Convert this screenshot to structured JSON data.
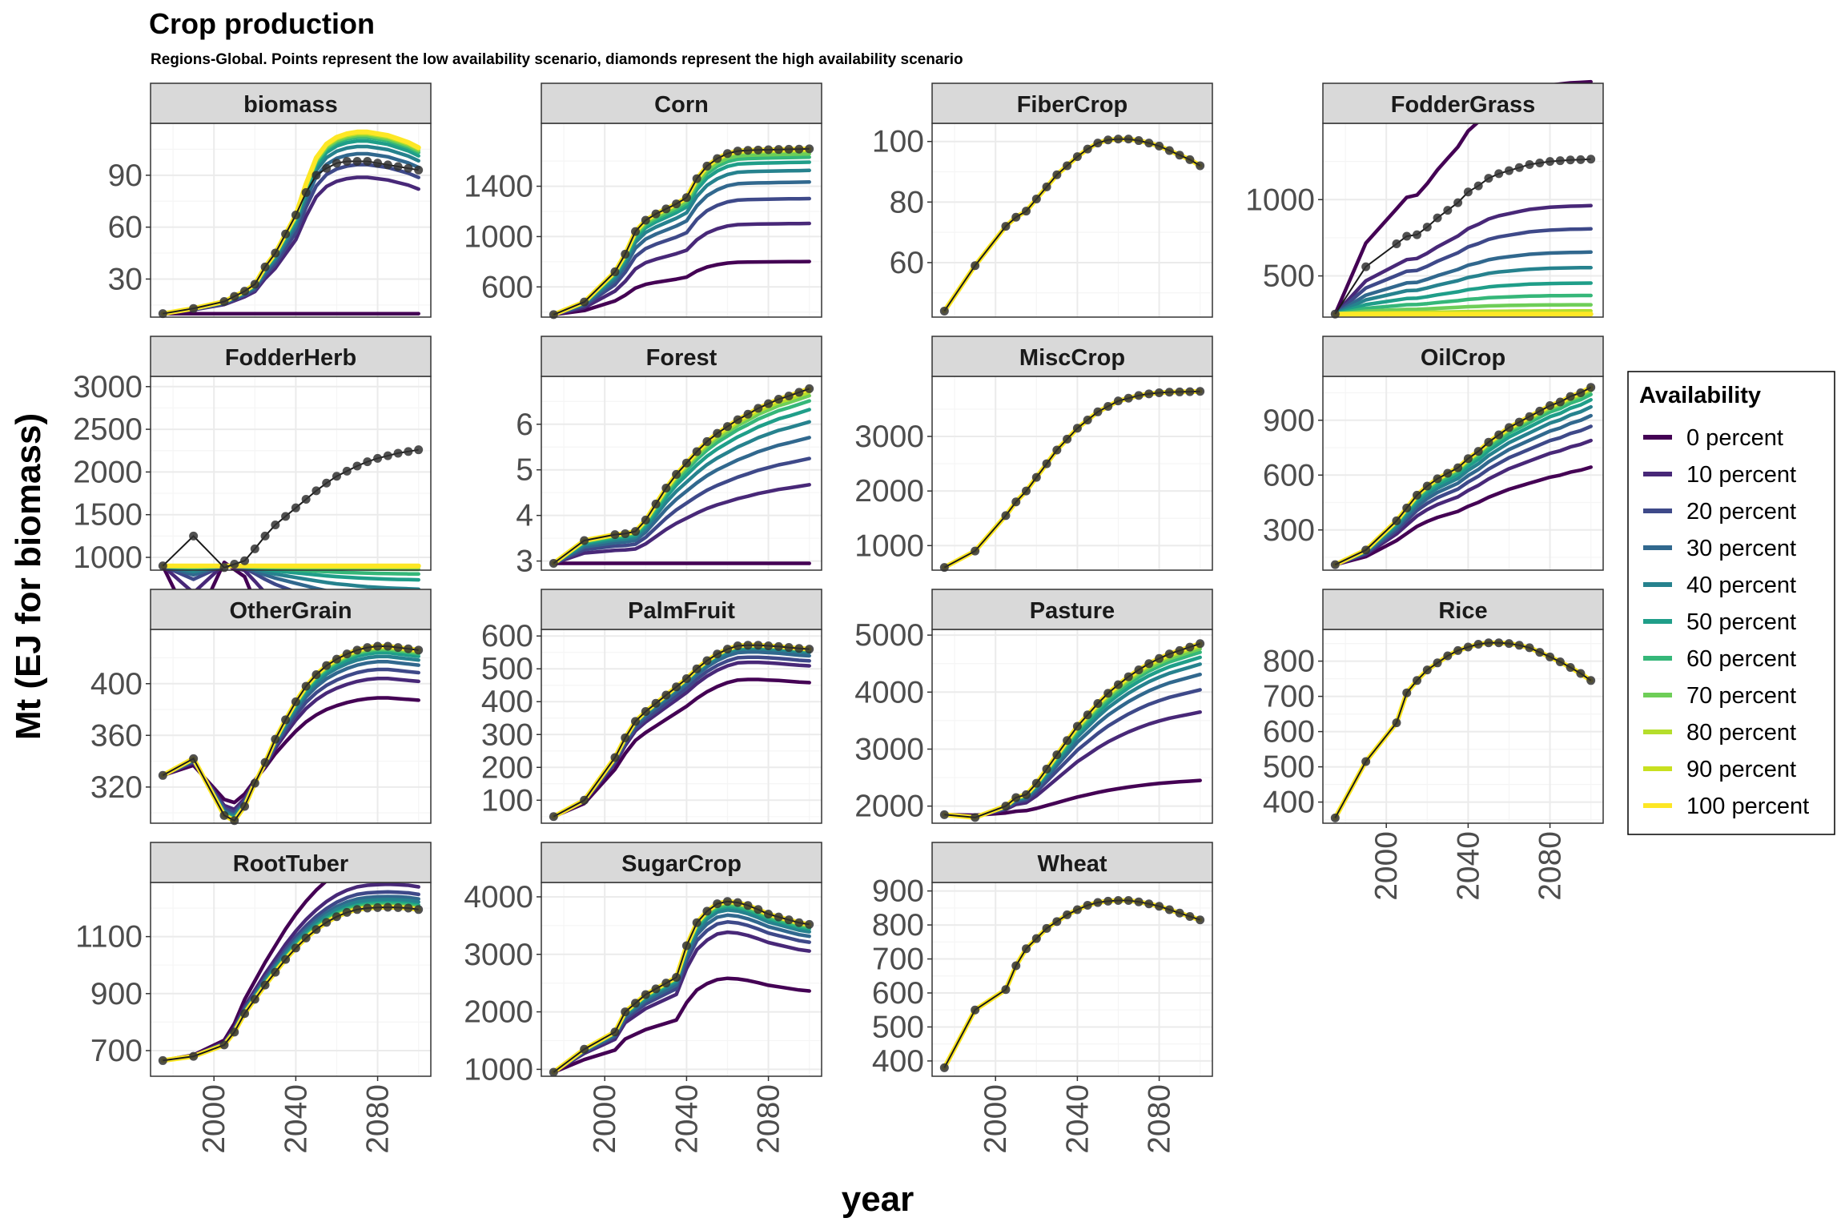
{
  "figure": {
    "title": "Crop production",
    "subtitle": "Regions-Global. Points represent the low availability scenario, diamonds represent the high availability scenario",
    "xlabel": "year",
    "ylabel": "Mt (EJ for biomass)"
  },
  "colors": {
    "strip_fill": "#d9d9d9",
    "panel_border": "#333333",
    "grid_major": "#ebebeb",
    "grid_minor": "#f5f5f5",
    "points": "#333333",
    "palette": [
      "#440154",
      "#482878",
      "#3e4989",
      "#31688e",
      "#26828e",
      "#1f9e89",
      "#35b779",
      "#6ece58",
      "#b5de2b",
      "#c8e020",
      "#fde725"
    ]
  },
  "chart_data": {
    "type": "line",
    "x": [
      1975,
      1990,
      2005,
      2010,
      2015,
      2020,
      2025,
      2030,
      2035,
      2040,
      2045,
      2050,
      2055,
      2060,
      2065,
      2070,
      2075,
      2080,
      2085,
      2090,
      2095,
      2100
    ],
    "xticks": [
      "2000",
      "2040",
      "2080"
    ],
    "xtick_values": [
      2000,
      2040,
      2080
    ],
    "xlim": [
      1969,
      2106
    ],
    "legend": {
      "title": "Availability",
      "position": "right",
      "entries": [
        "0 percent",
        "10 percent",
        "20 percent",
        "30 percent",
        "40 percent",
        "50 percent",
        "60 percent",
        "70 percent",
        "80 percent",
        "90 percent",
        "100 percent"
      ]
    },
    "panels": [
      {
        "name": "biomass",
        "ylim": [
          8,
          120
        ],
        "yticks": [
          30,
          60,
          90
        ],
        "ytick_labels": [
          "30",
          "60",
          "90"
        ],
        "low": [
          10,
          13,
          17,
          20,
          23,
          27,
          37,
          45,
          56,
          67,
          80,
          90,
          94,
          97,
          98,
          98,
          98,
          97,
          96,
          95,
          94,
          93
        ],
        "high": [
          10,
          13,
          17,
          20,
          23,
          27,
          37,
          45,
          56,
          67,
          85,
          100,
          108,
          112,
          114,
          115,
          115,
          114,
          113,
          111,
          109,
          106
        ],
        "f": [
          0,
          0.75,
          0.82,
          0.88,
          0.92,
          0.95,
          0.97,
          0.98,
          0.99,
          1,
          1
        ]
      },
      {
        "name": "Corn",
        "ylim": [
          360,
          1900
        ],
        "yticks": [
          600,
          1000,
          1400
        ],
        "ytick_labels": [
          "600",
          "1000",
          "1400"
        ],
        "low": [
          380,
          480,
          720,
          860,
          1040,
          1130,
          1180,
          1220,
          1260,
          1310,
          1460,
          1560,
          1620,
          1660,
          1680,
          1685,
          1688,
          1690,
          1692,
          1694,
          1695,
          1697
        ],
        "high": [
          380,
          480,
          720,
          860,
          1040,
          1130,
          1180,
          1220,
          1260,
          1310,
          1460,
          1560,
          1620,
          1660,
          1680,
          1685,
          1688,
          1690,
          1692,
          1694,
          1695,
          1697
        ],
        "f": [
          0.32,
          0.55,
          0.7,
          0.8,
          0.87,
          0.92,
          0.95,
          0.97,
          0.99,
          1,
          1
        ]
      },
      {
        "name": "FiberCrop",
        "ylim": [
          42,
          106
        ],
        "yticks": [
          60,
          80,
          100
        ],
        "ytick_labels": [
          "60",
          "80",
          "100"
        ],
        "low": [
          44,
          59,
          72,
          75,
          77,
          81,
          85,
          89,
          92,
          95,
          97.5,
          99.5,
          100.5,
          100.8,
          100.8,
          100.3,
          99.5,
          98.5,
          97,
          95.5,
          94,
          92
        ],
        "high": [
          44,
          59,
          72,
          75,
          77,
          81,
          85,
          89,
          92,
          95,
          97.5,
          99.5,
          100.5,
          100.8,
          100.8,
          100.3,
          99.5,
          98.5,
          97,
          95.5,
          94,
          92
        ],
        "f": [
          1,
          1,
          1,
          1,
          1,
          1,
          1,
          1,
          1,
          1,
          1
        ]
      },
      {
        "name": "FodderGrass",
        "ylim": [
          230,
          1500
        ],
        "yticks": [
          500,
          1000
        ],
        "ytick_labels": [
          "500",
          "1000"
        ],
        "low": [
          250,
          560,
          710,
          760,
          770,
          820,
          880,
          930,
          980,
          1050,
          1090,
          1140,
          1170,
          1190,
          1210,
          1230,
          1240,
          1250,
          1255,
          1260,
          1262,
          1265
        ],
        "high": [
          250,
          560,
          710,
          760,
          770,
          820,
          880,
          930,
          980,
          1050,
          1090,
          1140,
          1170,
          1190,
          1210,
          1230,
          1240,
          1250,
          1255,
          1260,
          1262,
          1265
        ],
        "f": [
          1.5,
          0.7,
          0.55,
          0.4,
          0.3,
          0.2,
          0.12,
          0.06,
          0.02,
          0,
          0
        ]
      },
      {
        "name": "FodderHerb",
        "ylim": [
          850,
          3120
        ],
        "yticks": [
          1000,
          1500,
          2000,
          2500,
          3000
        ],
        "ytick_labels": [
          "1000",
          "1500",
          "2000",
          "2500",
          "3000"
        ],
        "low": [
          900,
          1250,
          880,
          920,
          960,
          1100,
          1250,
          1380,
          1480,
          1580,
          1680,
          1780,
          1870,
          1950,
          2010,
          2070,
          2120,
          2160,
          2190,
          2220,
          2240,
          2260
        ],
        "high": [
          900,
          1250,
          880,
          920,
          960,
          1100,
          1250,
          1380,
          1480,
          1580,
          1680,
          1780,
          1870,
          1950,
          2010,
          2070,
          2120,
          2160,
          2190,
          2220,
          2240,
          2260
        ],
        "f": [
          -2.1,
          -0.9,
          -0.45,
          -0.3,
          -0.2,
          -0.12,
          -0.07,
          -0.03,
          -0.01,
          0,
          0
        ]
      },
      {
        "name": "Forest",
        "ylim": [
          2.8,
          7.05
        ],
        "yticks": [
          3,
          4,
          5,
          6
        ],
        "ytick_labels": [
          "3",
          "4",
          "5",
          "6"
        ],
        "low": [
          2.95,
          3.45,
          3.58,
          3.6,
          3.65,
          3.9,
          4.25,
          4.6,
          4.9,
          5.15,
          5.4,
          5.62,
          5.8,
          5.95,
          6.1,
          6.22,
          6.35,
          6.45,
          6.55,
          6.62,
          6.7,
          6.78
        ],
        "high": [
          2.95,
          3.45,
          3.58,
          3.6,
          3.65,
          3.9,
          4.25,
          4.6,
          4.9,
          5.15,
          5.4,
          5.62,
          5.8,
          5.95,
          6.1,
          6.22,
          6.35,
          6.45,
          6.55,
          6.62,
          6.7,
          6.78
        ],
        "f": [
          0,
          0.45,
          0.6,
          0.72,
          0.81,
          0.88,
          0.93,
          0.96,
          0.98,
          1,
          1
        ]
      },
      {
        "name": "MiscCrop",
        "ylim": [
          550,
          4100
        ],
        "yticks": [
          1000,
          2000,
          3000
        ],
        "ytick_labels": [
          "1000",
          "2000",
          "3000"
        ],
        "low": [
          600,
          900,
          1550,
          1800,
          2000,
          2250,
          2500,
          2750,
          2950,
          3150,
          3300,
          3450,
          3550,
          3650,
          3700,
          3750,
          3780,
          3800,
          3810,
          3815,
          3820,
          3825
        ],
        "high": [
          600,
          900,
          1550,
          1800,
          2000,
          2250,
          2500,
          2750,
          2950,
          3150,
          3300,
          3450,
          3550,
          3650,
          3700,
          3750,
          3780,
          3800,
          3810,
          3815,
          3820,
          3825
        ],
        "f": [
          1,
          1,
          1,
          1,
          1,
          1,
          1,
          1,
          1,
          1,
          1
        ]
      },
      {
        "name": "OilCrop",
        "ylim": [
          80,
          1140
        ],
        "yticks": [
          300,
          600,
          900
        ],
        "ytick_labels": [
          "300",
          "600",
          "900"
        ],
        "low": [
          110,
          190,
          350,
          420,
          490,
          540,
          580,
          610,
          640,
          690,
          730,
          780,
          820,
          860,
          890,
          920,
          950,
          980,
          1000,
          1030,
          1050,
          1080
        ],
        "high": [
          110,
          190,
          350,
          420,
          490,
          540,
          580,
          610,
          640,
          690,
          730,
          780,
          820,
          860,
          890,
          920,
          950,
          980,
          1000,
          1030,
          1050,
          1080
        ],
        "f": [
          0.55,
          0.7,
          0.78,
          0.84,
          0.89,
          0.93,
          0.96,
          0.98,
          0.99,
          1,
          1
        ]
      },
      {
        "name": "OtherGrain",
        "ylim": [
          292,
          442
        ],
        "yticks": [
          320,
          360,
          400
        ],
        "ytick_labels": [
          "320",
          "360",
          "400"
        ],
        "low": [
          329,
          342,
          298,
          294,
          305,
          323,
          339,
          357,
          372,
          386,
          398,
          407,
          414,
          419,
          423,
          426,
          428,
          429,
          429,
          428,
          427,
          426
        ],
        "high": [
          329,
          342,
          298,
          294,
          305,
          323,
          339,
          357,
          372,
          386,
          398,
          407,
          414,
          419,
          423,
          426,
          428,
          429,
          429,
          428,
          427,
          426
        ],
        "f": [
          0.6,
          0.75,
          0.82,
          0.88,
          0.92,
          0.95,
          0.97,
          0.98,
          0.99,
          1,
          1
        ]
      },
      {
        "name": "PalmFruit",
        "ylim": [
          30,
          620
        ],
        "yticks": [
          100,
          200,
          300,
          400,
          500,
          600
        ],
        "ytick_labels": [
          "100",
          "200",
          "300",
          "400",
          "500",
          "600"
        ],
        "low": [
          50,
          100,
          230,
          290,
          340,
          370,
          395,
          420,
          445,
          470,
          500,
          525,
          545,
          560,
          570,
          572,
          572,
          570,
          568,
          565,
          562,
          560
        ],
        "high": [
          50,
          100,
          230,
          290,
          340,
          370,
          395,
          420,
          445,
          470,
          500,
          525,
          545,
          560,
          570,
          572,
          572,
          570,
          568,
          565,
          562,
          560
        ],
        "f": [
          0.8,
          0.9,
          0.93,
          0.96,
          0.98,
          0.99,
          1,
          1,
          1,
          1,
          1
        ]
      },
      {
        "name": "Pasture",
        "ylim": [
          1700,
          5100
        ],
        "yticks": [
          2000,
          3000,
          4000,
          5000
        ],
        "ytick_labels": [
          "2000",
          "3000",
          "4000",
          "5000"
        ],
        "low": [
          1850,
          1800,
          2000,
          2150,
          2200,
          2400,
          2650,
          2900,
          3150,
          3400,
          3600,
          3800,
          3980,
          4130,
          4270,
          4390,
          4500,
          4590,
          4670,
          4730,
          4790,
          4850
        ],
        "high": [
          1850,
          1800,
          2000,
          2150,
          2200,
          2400,
          2650,
          2900,
          3150,
          3400,
          3600,
          3800,
          3980,
          4130,
          4270,
          4390,
          4500,
          4590,
          4670,
          4730,
          4790,
          4850
        ],
        "f": [
          0.2,
          0.6,
          0.73,
          0.82,
          0.88,
          0.92,
          0.95,
          0.97,
          0.985,
          1,
          1
        ]
      },
      {
        "name": "Rice",
        "ylim": [
          340,
          890
        ],
        "yticks": [
          400,
          500,
          600,
          700,
          800
        ],
        "ytick_labels": [
          "400",
          "500",
          "600",
          "700",
          "800"
        ],
        "low": [
          355,
          515,
          625,
          710,
          745,
          775,
          795,
          815,
          830,
          840,
          848,
          852,
          852,
          850,
          845,
          838,
          825,
          812,
          798,
          782,
          765,
          745
        ],
        "high": [
          355,
          515,
          625,
          710,
          745,
          775,
          795,
          815,
          830,
          840,
          848,
          852,
          852,
          850,
          845,
          838,
          825,
          812,
          798,
          782,
          765,
          745
        ],
        "f": [
          1,
          1,
          1,
          1,
          1,
          1,
          1,
          1,
          1,
          1,
          1
        ]
      },
      {
        "name": "RootTuber",
        "ylim": [
          610,
          1290
        ],
        "yticks": [
          700,
          900,
          1100
        ],
        "ytick_labels": [
          "700",
          "900",
          "1100"
        ],
        "low": [
          665,
          680,
          720,
          765,
          830,
          880,
          930,
          975,
          1020,
          1060,
          1095,
          1125,
          1150,
          1170,
          1185,
          1195,
          1200,
          1202,
          1203,
          1202,
          1200,
          1195
        ],
        "high": [
          665,
          680,
          720,
          765,
          830,
          880,
          930,
          975,
          1020,
          1060,
          1095,
          1125,
          1150,
          1170,
          1185,
          1195,
          1200,
          1202,
          1203,
          1202,
          1200,
          1195
        ],
        "f": [
          1.3,
          1.15,
          1.1,
          1.07,
          1.05,
          1.03,
          1.02,
          1.01,
          1.005,
          1,
          1
        ]
      },
      {
        "name": "SugarCrop",
        "ylim": [
          880,
          4250
        ],
        "yticks": [
          1000,
          2000,
          3000,
          4000
        ],
        "ytick_labels": [
          "1000",
          "2000",
          "3000",
          "4000"
        ],
        "low": [
          950,
          1350,
          1650,
          2000,
          2150,
          2300,
          2400,
          2500,
          2600,
          3150,
          3550,
          3750,
          3880,
          3920,
          3900,
          3850,
          3780,
          3700,
          3650,
          3600,
          3550,
          3520
        ],
        "high": [
          950,
          1350,
          1650,
          2000,
          2150,
          2300,
          2400,
          2500,
          2600,
          3150,
          3550,
          3750,
          3880,
          3920,
          3900,
          3850,
          3780,
          3700,
          3650,
          3600,
          3550,
          3520
        ],
        "f": [
          0.55,
          0.82,
          0.88,
          0.92,
          0.95,
          0.97,
          0.98,
          0.99,
          0.995,
          1,
          1
        ]
      },
      {
        "name": "Wheat",
        "ylim": [
          355,
          925
        ],
        "yticks": [
          400,
          500,
          600,
          700,
          800,
          900
        ],
        "ytick_labels": [
          "400",
          "500",
          "600",
          "700",
          "800",
          "900"
        ],
        "low": [
          380,
          550,
          610,
          680,
          730,
          760,
          790,
          810,
          830,
          845,
          858,
          866,
          870,
          872,
          872,
          868,
          862,
          855,
          845,
          835,
          825,
          815
        ],
        "high": [
          380,
          550,
          610,
          680,
          730,
          760,
          790,
          810,
          830,
          845,
          858,
          866,
          870,
          872,
          872,
          868,
          862,
          855,
          845,
          835,
          825,
          815
        ],
        "f": [
          1,
          1,
          1,
          1,
          1,
          1,
          1,
          1,
          1,
          1,
          1
        ]
      }
    ]
  }
}
